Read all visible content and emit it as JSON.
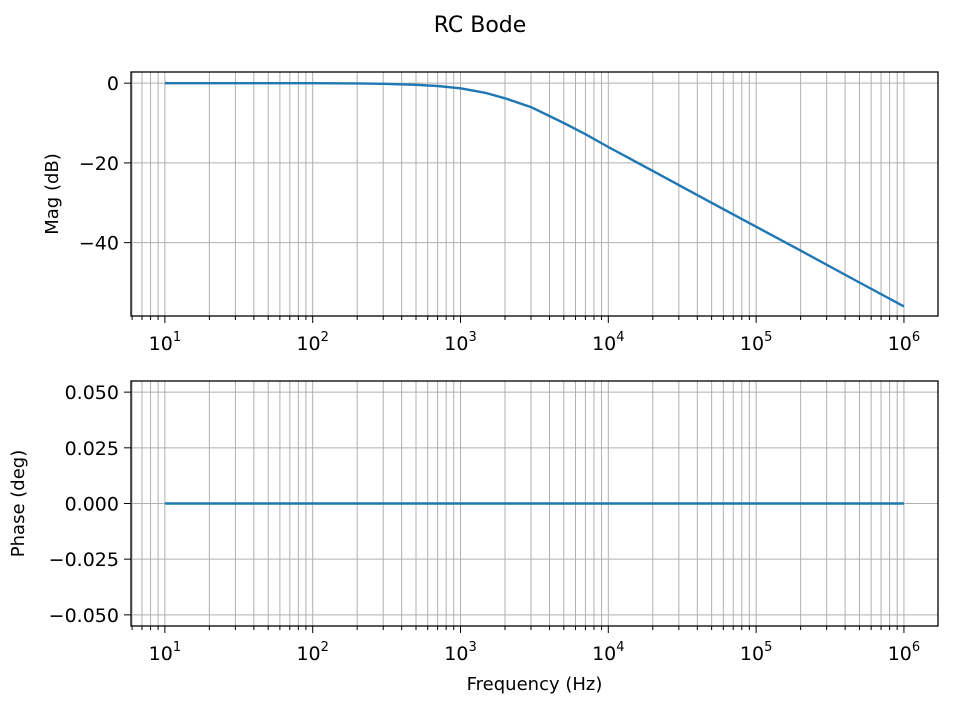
{
  "figure": {
    "title": "RC Bode"
  },
  "chart_data": [
    {
      "type": "line",
      "panel": "magnitude",
      "title": "",
      "xlabel": "",
      "ylabel": "Mag (dB)",
      "xscale": "log",
      "xlim": [
        5.9,
        1700000.0
      ],
      "ylim": [
        -58.4,
        2.8
      ],
      "xticks": [
        10,
        100,
        1000,
        10000,
        100000,
        1000000
      ],
      "xtick_labels": [
        [
          "10",
          "1"
        ],
        [
          "10",
          "2"
        ],
        [
          "10",
          "3"
        ],
        [
          "10",
          "4"
        ],
        [
          "10",
          "5"
        ],
        [
          "10",
          "6"
        ]
      ],
      "yticks": [
        0,
        -20,
        -40
      ],
      "ytick_labels": [
        "0",
        "−20",
        "−40"
      ],
      "grid": "both (major and minor)",
      "legend": "none",
      "line_color": "#1f77b4",
      "model": "first-order RC low-pass, corner frequency about 1.6 kHz",
      "series": [
        {
          "x": [
            10,
            20,
            50,
            100,
            200,
            300,
            500,
            700,
            1000,
            1500,
            2000,
            3000,
            5000,
            7000,
            10000,
            20000,
            50000,
            100000,
            200000,
            500000,
            1000000
          ],
          "values": [
            0,
            0,
            -0.004,
            -0.02,
            -0.07,
            -0.15,
            -0.4,
            -0.72,
            -1.3,
            -2.5,
            -3.8,
            -6.0,
            -10.0,
            -12.8,
            -16.0,
            -22.0,
            -30.0,
            -36.0,
            -42.0,
            -50.0,
            -56.0
          ]
        }
      ]
    },
    {
      "type": "line",
      "panel": "phase",
      "title": "",
      "xlabel": "Frequency (Hz)",
      "ylabel": "Phase (deg)",
      "xscale": "log",
      "xlim": [
        5.9,
        1700000.0
      ],
      "ylim": [
        -0.055,
        0.055
      ],
      "xticks": [
        10,
        100,
        1000,
        10000,
        100000,
        1000000
      ],
      "xtick_labels": [
        [
          "10",
          "1"
        ],
        [
          "10",
          "2"
        ],
        [
          "10",
          "3"
        ],
        [
          "10",
          "4"
        ],
        [
          "10",
          "5"
        ],
        [
          "10",
          "6"
        ]
      ],
      "yticks": [
        0.05,
        0.025,
        0,
        -0.025,
        -0.05
      ],
      "ytick_labels": [
        "0.050",
        "0.025",
        "0.000",
        "−0.025",
        "−0.050"
      ],
      "grid": "both (major and minor)",
      "legend": "none",
      "line_color": "#1f77b4",
      "series": [
        {
          "x": [
            10,
            1000000
          ],
          "values": [
            0,
            0
          ]
        }
      ]
    }
  ]
}
